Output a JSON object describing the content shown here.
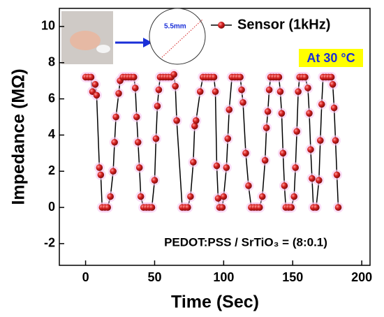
{
  "chart_data": {
    "type": "line",
    "xlabel": "Time (Sec)",
    "ylabel": "Impedance (MΩ)",
    "annotations": [
      "At 30 °C",
      "PEDOT:PSS / SrTiO₃ = (8:0.1)",
      "5.5mm"
    ],
    "x": [
      0,
      2,
      4,
      5,
      7,
      8,
      10,
      11,
      12,
      14,
      16,
      18,
      20,
      21,
      22,
      24,
      25,
      27,
      29,
      31,
      33,
      35,
      36,
      37,
      38,
      39,
      40,
      42,
      44,
      46,
      48,
      50,
      51,
      52,
      53,
      54,
      56,
      58,
      60,
      62,
      64,
      65,
      66,
      70,
      72,
      74,
      76,
      78,
      79,
      80,
      83,
      85,
      87,
      89,
      91,
      93,
      94,
      95,
      96,
      97,
      99,
      100,
      102,
      103,
      104,
      106,
      108,
      110,
      112,
      113,
      114,
      116,
      118,
      120,
      122,
      124,
      126,
      128,
      130,
      131,
      132,
      133,
      134,
      136,
      138,
      140,
      141,
      142,
      143,
      144,
      145,
      147,
      149,
      151,
      152,
      153,
      154,
      155,
      157,
      159,
      161,
      162,
      163,
      164,
      165,
      167,
      169,
      170,
      171,
      172,
      174,
      176,
      178,
      179,
      180,
      181,
      182,
      183
    ],
    "series": [
      {
        "name": "Sensor (1kHz)",
        "color": "#d42020",
        "values": [
          7.2,
          7.2,
          7.2,
          6.4,
          6.8,
          6.2,
          2.2,
          1.8,
          0,
          0,
          0,
          0.6,
          2,
          3.6,
          5,
          6.3,
          7,
          7.2,
          7.2,
          7.2,
          7.2,
          7.2,
          6.6,
          5,
          3.6,
          2.2,
          0.6,
          0,
          0,
          0,
          0,
          1.5,
          3.8,
          5.6,
          6.5,
          7.2,
          7.2,
          7.2,
          7.2,
          7.2,
          7.35,
          6.7,
          4.8,
          0,
          0,
          0,
          0.6,
          2.5,
          4.5,
          4.8,
          6.4,
          7.2,
          7.2,
          7.2,
          7.2,
          7.2,
          6.4,
          2.3,
          0.5,
          0,
          0,
          0.6,
          2.2,
          3.8,
          5.4,
          7.2,
          7.2,
          7.2,
          7.2,
          6.5,
          5.8,
          3,
          1.2,
          0,
          0,
          0,
          0,
          0.6,
          2.6,
          4.4,
          5.3,
          6.5,
          7.2,
          7.2,
          7.2,
          7.2,
          6.4,
          5.2,
          3,
          1.2,
          0,
          0,
          0,
          0.6,
          2.2,
          4.2,
          6.4,
          7.2,
          7.2,
          7.2,
          6.6,
          5.2,
          3.2,
          1.6,
          0,
          0,
          1.5,
          3.7,
          5.7,
          7.2,
          7.2,
          7.2,
          7.2,
          6.8,
          5.5,
          3.7,
          1.8,
          0
        ]
      }
    ],
    "xlim": [
      -19,
      206
    ],
    "ylim": [
      -3.2,
      11
    ],
    "xticks": [
      0,
      50,
      100,
      150,
      200
    ],
    "yticks": [
      -2,
      0,
      2,
      4,
      6,
      8,
      10
    ]
  }
}
